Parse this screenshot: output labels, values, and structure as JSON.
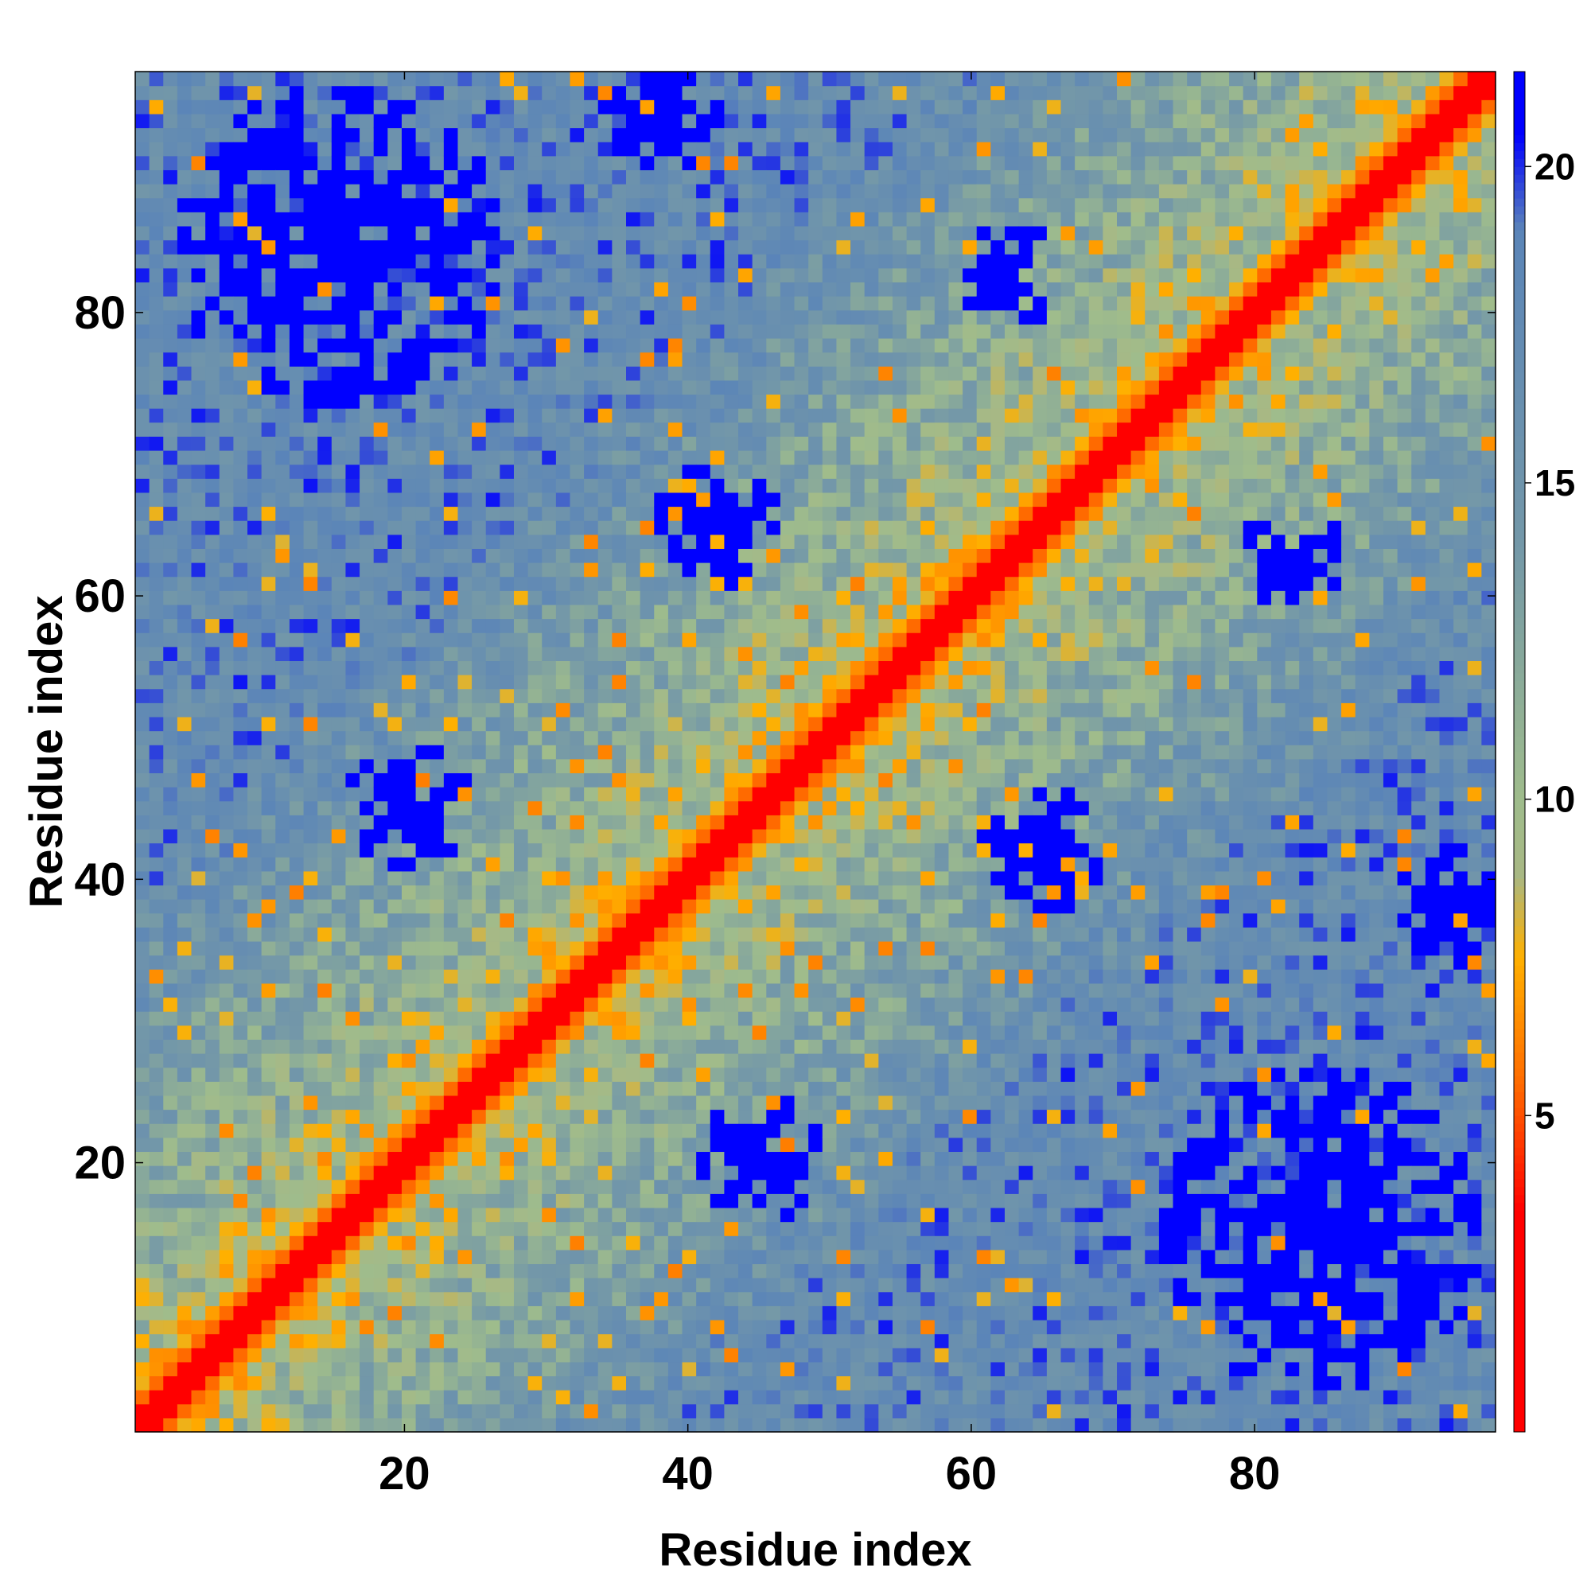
{
  "chart_data": {
    "type": "heatmap",
    "title": "",
    "xlabel": "Residue index",
    "ylabel": "Residue index",
    "n_residues": 97,
    "xlim": [
      1,
      97
    ],
    "ylim": [
      1,
      97
    ],
    "x_ticks": [
      20,
      40,
      60,
      80
    ],
    "y_ticks": [
      20,
      40,
      60,
      80
    ],
    "colorbar": {
      "ticks": [
        5,
        10,
        15,
        20
      ],
      "range": [
        0,
        21.5
      ],
      "stops": [
        {
          "value": 0,
          "color": "#ff0000"
        },
        {
          "value": 3.5,
          "color": "#ff0000"
        },
        {
          "value": 5.5,
          "color": "#ff6a00"
        },
        {
          "value": 7.5,
          "color": "#ffb000"
        },
        {
          "value": 8.8,
          "color": "#a8b884"
        },
        {
          "value": 10.0,
          "color": "#9fbc8c"
        },
        {
          "value": 14.0,
          "color": "#7498a8"
        },
        {
          "value": 19.0,
          "color": "#5b85b8"
        },
        {
          "value": 20.5,
          "color": "#0000ff"
        },
        {
          "value": 21.5,
          "color": "#0000ff"
        }
      ],
      "cut_value": 20.5,
      "cut_color": "#0000ff"
    },
    "contact_regions": [
      {
        "x_center": 85,
        "y_center": 15,
        "radius": 12,
        "value": 21
      },
      {
        "x_center": 15,
        "y_center": 85,
        "radius": 12,
        "value": 21
      },
      {
        "x_center": 45,
        "y_center": 20,
        "radius": 5,
        "value": 21
      },
      {
        "x_center": 20,
        "y_center": 45,
        "radius": 5,
        "value": 21
      },
      {
        "x_center": 65,
        "y_center": 42,
        "radius": 5,
        "value": 21
      },
      {
        "x_center": 42,
        "y_center": 65,
        "radius": 5,
        "value": 21
      },
      {
        "x_center": 83,
        "y_center": 63,
        "radius": 4,
        "value": 21
      },
      {
        "x_center": 63,
        "y_center": 83,
        "radius": 4,
        "value": 21
      },
      {
        "x_center": 95,
        "y_center": 38,
        "radius": 5,
        "value": 21
      },
      {
        "x_center": 38,
        "y_center": 95,
        "radius": 5,
        "value": 21
      }
    ]
  }
}
